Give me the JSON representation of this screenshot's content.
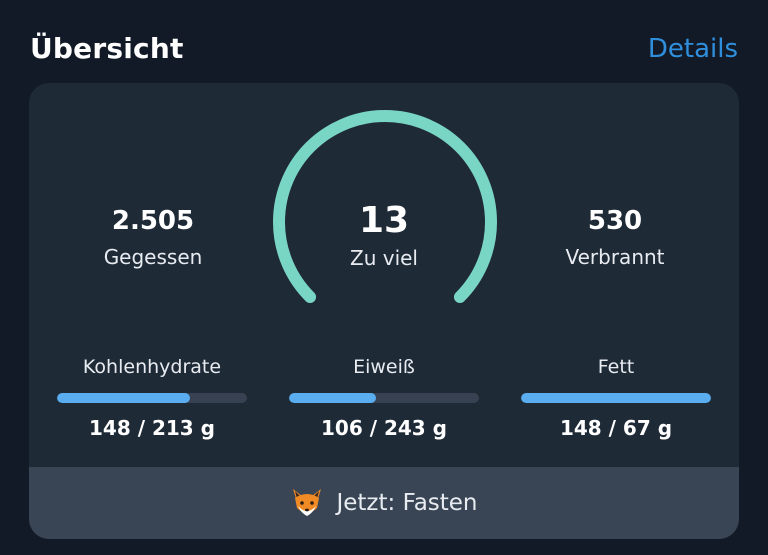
{
  "header": {
    "title": "Übersicht",
    "link_label": "Details"
  },
  "overview": {
    "eaten": {
      "value": "2.505",
      "label": "Gegessen"
    },
    "remaining": {
      "value": "13",
      "label": "Zu viel",
      "ring_fraction": 1.0
    },
    "burned": {
      "value": "530",
      "label": "Verbrannt"
    }
  },
  "macros": [
    {
      "label": "Kohlenhydrate",
      "amount": "148 / 213 g",
      "fraction": 0.7
    },
    {
      "label": "Eiweiß",
      "amount": "106 / 243 g",
      "fraction": 0.46
    },
    {
      "label": "Fett",
      "amount": "148 / 67 g",
      "fraction": 1.0
    }
  ],
  "footer": {
    "icon": "fox-icon",
    "text": "Jetzt: Fasten"
  },
  "colors": {
    "background": "#121a27",
    "card": "#1f2a37",
    "footer": "#394554",
    "accent_link": "#2f8fdc",
    "gauge": "#7ad6c4",
    "bar_fill": "#5aaef0",
    "bar_track": "#374151"
  }
}
